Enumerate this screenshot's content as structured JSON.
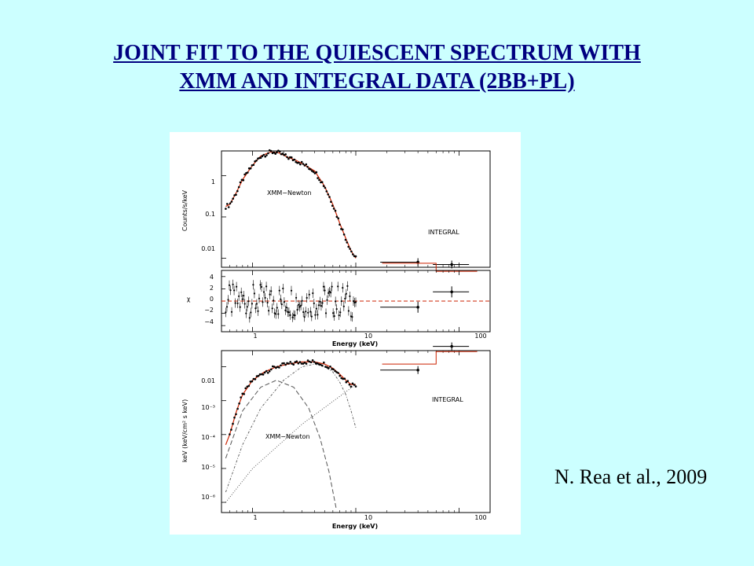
{
  "slide": {
    "title_line1": "JOINT FIT TO THE QUIESCENT SPECTRUM WITH",
    "title_line2": "XMM AND INTEGRAL DATA (2BB+PL)",
    "credit": "N. Rea et al., 2009"
  },
  "colors": {
    "background": "#ccffff",
    "title": "#000080",
    "model": "#cc2200"
  },
  "chart_data": [
    {
      "type": "scatter",
      "panel": "counts spectrum",
      "xscale": "log",
      "yscale": "log",
      "xlim": [
        0.5,
        200
      ],
      "ylim": [
        0.006,
        4
      ],
      "ylabel": "Counts/s/keV",
      "yticks": [
        "1",
        "0.1",
        "0.01"
      ],
      "annotations": [
        "XMM−Newton",
        "INTEGRAL"
      ],
      "series": [
        {
          "x": [
            0.55,
            0.6,
            0.7,
            0.8,
            1.0,
            1.2,
            1.5,
            1.8,
            2.2,
            2.6,
            3.0,
            4.0,
            5.0,
            6.0,
            7.0,
            8.0,
            9.0,
            10.0
          ],
          "y": [
            0.18,
            0.2,
            0.4,
            0.8,
            1.8,
            3.0,
            3.8,
            3.6,
            2.8,
            2.4,
            2.0,
            1.3,
            0.55,
            0.2,
            0.07,
            0.03,
            0.015,
            0.01
          ]
        },
        {
          "x": [
            40,
            85
          ],
          "y": [
            0.008,
            0.007
          ]
        }
      ]
    },
    {
      "type": "scatter",
      "panel": "residuals",
      "xscale": "log",
      "xlim": [
        0.5,
        200
      ],
      "ylim": [
        -5,
        5
      ],
      "ylabel": "χ",
      "xlabel": "Energy (keV)",
      "yticks": [
        "4",
        "2",
        "0",
        "−2",
        "−4"
      ],
      "xticks": [
        "1",
        "10",
        "100"
      ],
      "series": [
        {
          "x": [
            40,
            85
          ],
          "y": [
            -1,
            1.5
          ]
        }
      ]
    },
    {
      "type": "line",
      "panel": "unfolded spectrum",
      "xscale": "log",
      "yscale": "log",
      "xlim": [
        0.5,
        200
      ],
      "ylim": [
        5e-07,
        0.03
      ],
      "ylabel": "keV (keV/cm² s keV)",
      "xlabel": "Energy (keV)",
      "yticks": [
        "0.01",
        "10⁻³",
        "10⁻⁴",
        "10⁻⁵",
        "10⁻⁶"
      ],
      "xticks": [
        "1",
        "10",
        "100"
      ],
      "annotations": [
        "XMM−Newton",
        "INTEGRAL"
      ],
      "series": [
        {
          "x": [
            0.55,
            0.6,
            0.7,
            0.8,
            1.0,
            1.3,
            1.7,
            2.2,
            3.0,
            4.0,
            5.0,
            6.0,
            7.0,
            8.0,
            9.0,
            10.0
          ],
          "y": [
            5e-05,
            0.0001,
            0.0005,
            0.0015,
            0.004,
            0.007,
            0.01,
            0.012,
            0.014,
            0.014,
            0.012,
            0.009,
            0.006,
            0.004,
            0.003,
            0.003
          ]
        },
        {
          "x": [
            40,
            85
          ],
          "y": [
            0.008,
            0.04
          ]
        }
      ]
    }
  ]
}
